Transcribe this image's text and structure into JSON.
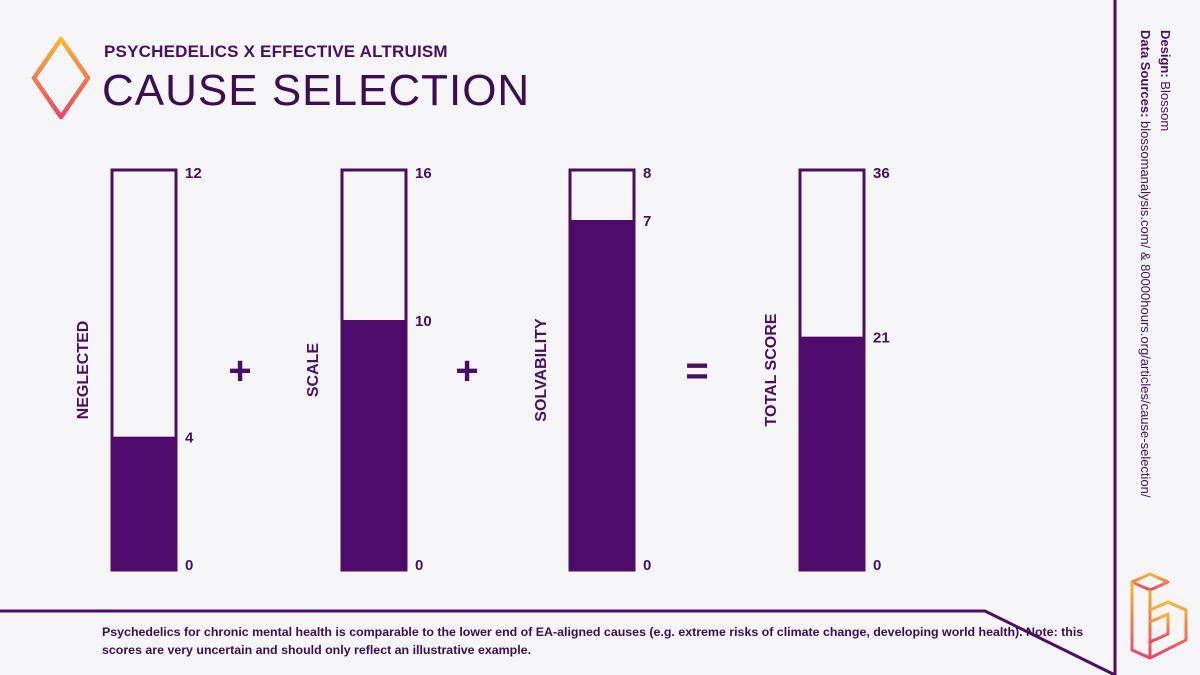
{
  "header": {
    "kicker": "PSYCHEDELICS X EFFECTIVE ALTRUISM",
    "title": "CAUSE SELECTION"
  },
  "credits": {
    "design_label": "Design:",
    "design_value": "Blossom",
    "sources_label": "Data Sources:",
    "sources_value": "blossomanalysis.com/ & 80000hours.org/articles/cause-selection/"
  },
  "footnote": "Psychedelics for chronic mental health is comparable to the lower end of EA-aligned causes (e.g. extreme risks of climate change, developing world health). Note: this scores are very uncertain and should only reflect an illustrative example.",
  "icons": {
    "top_logo": "diamond-logo-icon",
    "bottom_logo": "blossom-b-logo-icon"
  },
  "colors": {
    "fill": "#4f0b6b",
    "outline": "#4a0f62",
    "logo_gradient_start": "#f7b733",
    "logo_gradient_end": "#e8456b"
  },
  "chart_data": {
    "type": "bar",
    "series": [
      {
        "name": "NEGLECTED",
        "value": 4,
        "max": 12,
        "min": 0
      },
      {
        "name": "SCALE",
        "value": 10,
        "max": 16,
        "min": 0
      },
      {
        "name": "SOLVABILITY",
        "value": 7,
        "max": 8,
        "min": 0
      },
      {
        "name": "TOTAL SCORE",
        "value": 21,
        "max": 36,
        "min": 0
      }
    ],
    "operators": [
      "+",
      "+",
      "="
    ]
  }
}
